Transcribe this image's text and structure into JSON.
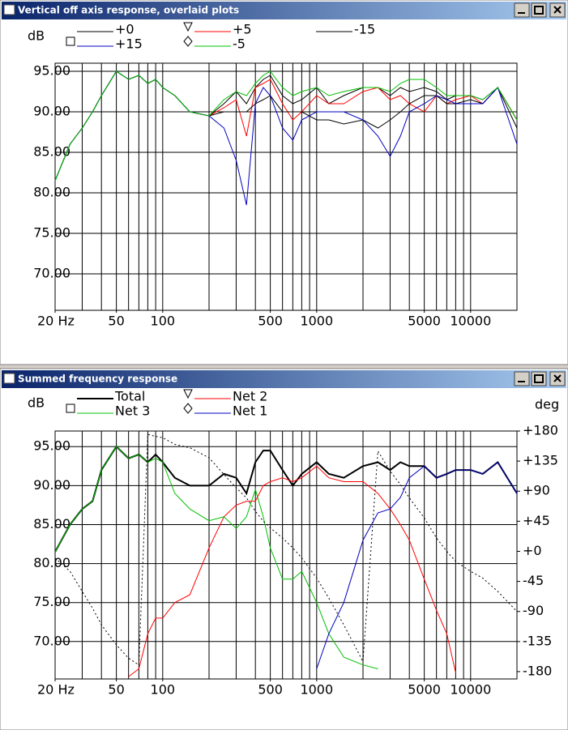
{
  "chart_data": [
    {
      "type": "line",
      "title": "Vertical off axis response, overlaid plots",
      "ylabel": "dB",
      "log_x": true,
      "grid": true,
      "x": [
        20,
        25,
        30,
        35,
        40,
        50,
        60,
        70,
        80,
        90,
        100,
        120,
        150,
        200,
        250,
        300,
        350,
        400,
        450,
        500,
        600,
        700,
        800,
        1000,
        1200,
        1500,
        2000,
        2500,
        3000,
        3500,
        4000,
        5000,
        6000,
        7000,
        8000,
        10000,
        12000,
        15000,
        20000
      ],
      "xlim": [
        20,
        20000
      ],
      "xticks": [
        {
          "value": 20,
          "label": "20 Hz"
        },
        50,
        100,
        500,
        1000,
        5000,
        10000
      ],
      "xgrid": [
        20,
        30,
        40,
        50,
        60,
        70,
        80,
        90,
        100,
        200,
        300,
        400,
        500,
        600,
        700,
        800,
        900,
        1000,
        2000,
        3000,
        4000,
        5000,
        6000,
        7000,
        8000,
        9000,
        10000
      ],
      "ylim": [
        65.5,
        96
      ],
      "yticks": [
        {
          "value": 70,
          "label": "70.00"
        },
        {
          "value": 75,
          "label": "75.00"
        },
        {
          "value": 80,
          "label": "80.00"
        },
        {
          "value": 85,
          "label": "85.00"
        },
        {
          "value": 90,
          "label": "90.00"
        },
        {
          "value": 95,
          "label": "95.00"
        }
      ],
      "series": [
        {
          "name": "+0",
          "color": "#000000",
          "values": [
            81.5,
            86,
            88,
            90,
            92,
            95,
            94,
            94.5,
            93.5,
            94,
            93,
            92,
            90,
            89.5,
            91,
            92.5,
            91,
            93,
            94,
            94.5,
            92,
            91,
            91.5,
            93,
            91,
            92,
            93,
            93,
            92,
            93,
            92.5,
            93,
            92.5,
            91.5,
            92,
            92,
            91.5,
            93,
            89
          ]
        },
        {
          "name": "+5",
          "color": "#ff0000",
          "marker": "triangle",
          "values": [
            81.5,
            86,
            88,
            90,
            92,
            95,
            94,
            94.5,
            93.5,
            94,
            93,
            92,
            90,
            89.5,
            90.5,
            91.5,
            87,
            93,
            93.5,
            94,
            91,
            89,
            90,
            92,
            91,
            91,
            92.5,
            93,
            91.5,
            92,
            91,
            90,
            92,
            91,
            91.5,
            92,
            91,
            93,
            89
          ]
        },
        {
          "name": "-15",
          "color": "#000000",
          "values": [
            81.5,
            86,
            88,
            90,
            92,
            95,
            94,
            94.5,
            93.5,
            94,
            93,
            92,
            90,
            89.5,
            90,
            90,
            90,
            91,
            91.5,
            92,
            90,
            90,
            90,
            89,
            89,
            88.5,
            89,
            88,
            89,
            90,
            91,
            92,
            92,
            91,
            91,
            91.5,
            91,
            93,
            88
          ]
        },
        {
          "name": "+15",
          "color": "#0000c0",
          "marker": "square",
          "values": [
            81.5,
            86,
            88,
            90,
            92,
            95,
            94,
            94.5,
            93.5,
            94,
            93,
            92,
            90,
            89.5,
            88,
            84,
            78.5,
            91,
            93,
            92,
            88,
            86.5,
            89,
            90,
            90,
            90,
            89,
            87,
            84.5,
            87,
            90,
            91,
            92,
            91.5,
            91,
            91,
            91,
            93,
            86
          ]
        },
        {
          "name": "-5",
          "color": "#00c000",
          "marker": "diamond",
          "values": [
            81.5,
            86,
            88,
            90,
            92,
            95,
            94,
            94.5,
            93.5,
            94,
            93,
            92,
            90,
            89.5,
            91.5,
            92.5,
            92,
            93.5,
            94.5,
            95,
            93,
            92,
            92.5,
            93,
            92,
            92.5,
            93,
            93,
            92.5,
            93.5,
            94,
            94,
            93,
            92,
            92,
            92,
            91.5,
            93,
            89
          ]
        }
      ]
    },
    {
      "type": "line",
      "title": "Summed frequency response",
      "ylabel": "dB",
      "y2label": "deg",
      "log_x": true,
      "grid": true,
      "x": [
        20,
        25,
        30,
        35,
        40,
        50,
        60,
        70,
        80,
        90,
        100,
        120,
        150,
        200,
        250,
        300,
        350,
        400,
        450,
        500,
        600,
        700,
        800,
        1000,
        1200,
        1500,
        2000,
        2500,
        3000,
        3500,
        4000,
        5000,
        6000,
        7000,
        8000,
        10000,
        12000,
        15000,
        20000
      ],
      "xlim": [
        20,
        20000
      ],
      "xticks": [
        {
          "value": 20,
          "label": "20 Hz"
        },
        50,
        100,
        500,
        1000,
        5000,
        10000
      ],
      "xgrid": [
        20,
        30,
        40,
        50,
        60,
        70,
        80,
        90,
        100,
        200,
        300,
        400,
        500,
        600,
        700,
        800,
        900,
        1000,
        2000,
        3000,
        4000,
        5000,
        6000,
        7000,
        8000,
        9000,
        10000
      ],
      "ylim": [
        65.2,
        97
      ],
      "yticks": [
        {
          "value": 70,
          "label": "70.00"
        },
        {
          "value": 75,
          "label": "75.00"
        },
        {
          "value": 80,
          "label": "80.00"
        },
        {
          "value": 85,
          "label": "85.00"
        },
        {
          "value": 90,
          "label": "90.00"
        },
        {
          "value": 95,
          "label": "95.00"
        }
      ],
      "y2lim": [
        -191,
        180
      ],
      "y2ticks": [
        {
          "value": 180,
          "label": "+180"
        },
        {
          "value": 135,
          "label": "+135"
        },
        {
          "value": 90,
          "label": "+90"
        },
        {
          "value": 45,
          "label": "+45"
        },
        {
          "value": 0,
          "label": "+0"
        },
        -45,
        -90,
        -135,
        -180
      ],
      "series": [
        {
          "name": "Total",
          "color": "#000000",
          "width": 2,
          "values": [
            81.5,
            85,
            87,
            88,
            92,
            95,
            93.5,
            94,
            93,
            94,
            93,
            91,
            90,
            90,
            91.5,
            91,
            89,
            93,
            94.5,
            94.5,
            92,
            90,
            91.5,
            93,
            91.5,
            91,
            92.5,
            93,
            92,
            93,
            92.5,
            92.5,
            91,
            91.5,
            92,
            92,
            91.5,
            93,
            89
          ]
        },
        {
          "name": "Net 2",
          "color": "#ff0000",
          "marker": "triangle",
          "values": [
            null,
            null,
            null,
            null,
            null,
            null,
            65.5,
            66.5,
            71,
            73,
            73,
            75,
            76,
            82,
            86,
            87.5,
            88,
            88,
            90,
            90.5,
            91,
            90.5,
            91,
            92.5,
            91,
            90.5,
            90.5,
            89,
            87,
            85,
            83,
            78,
            74,
            71,
            66,
            null,
            null,
            null,
            null
          ]
        },
        {
          "name": "Net 3",
          "color": "#00c000",
          "marker": "square",
          "values": [
            81.5,
            85,
            87,
            88,
            92,
            95,
            93.5,
            94,
            93,
            93.5,
            93,
            89,
            87,
            85.5,
            86,
            84.5,
            86,
            89.5,
            86,
            82,
            78,
            78,
            79,
            75,
            71,
            68,
            67,
            66.5,
            null,
            null,
            null,
            null,
            null,
            null,
            null,
            null,
            null,
            null,
            null
          ]
        },
        {
          "name": "Net 1",
          "color": "#0000c0",
          "marker": "diamond",
          "values": [
            null,
            null,
            null,
            null,
            null,
            null,
            null,
            null,
            null,
            null,
            null,
            null,
            null,
            null,
            null,
            null,
            null,
            null,
            null,
            null,
            null,
            null,
            null,
            66.5,
            71,
            75,
            83,
            86.5,
            87,
            88.5,
            91,
            92.5,
            91,
            91.5,
            92,
            92,
            91.5,
            93,
            89
          ]
        },
        {
          "color": "#000000",
          "axis": "y2",
          "dash": true,
          "values": [
            -10,
            -30,
            -60,
            -85,
            -110,
            -140,
            -160,
            -170,
            175,
            172,
            170,
            160,
            155,
            140,
            115,
            95,
            80,
            60,
            45,
            35,
            20,
            5,
            -10,
            -40,
            -70,
            -110,
            -165,
            150,
            120,
            100,
            80,
            50,
            20,
            0,
            -15,
            -30,
            -40,
            -60,
            -90
          ]
        }
      ]
    }
  ]
}
